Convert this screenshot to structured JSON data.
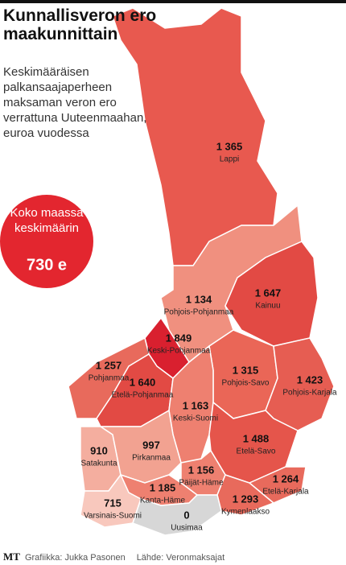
{
  "title": "Kunnallisveron ero maakunnittain",
  "subtitle": "Keskimääräisen palkansaajaperheen maksaman veron ero verrattuna Uuteenmaahan, euroa vuodessa",
  "callout": {
    "text": "Koko maassa keskimäärin",
    "value": {
      "value": 730,
      "label": "730 e"
    }
  },
  "regions": [
    {
      "name": "Lappi",
      "value": {
        "value": 1365,
        "label": "1 365"
      },
      "color": "#e8594f"
    },
    {
      "name": "Pohjois-Pohjanmaa",
      "value": {
        "value": 1134,
        "label": "1 134"
      },
      "color": "#f0907f"
    },
    {
      "name": "Kainuu",
      "value": {
        "value": 1647,
        "label": "1 647"
      },
      "color": "#e24a44"
    },
    {
      "name": "Keski-Pohjanmaa",
      "value": {
        "value": 1849,
        "label": "1 849"
      },
      "color": "#d9202f"
    },
    {
      "name": "Pohjanmaa",
      "value": {
        "value": 1257,
        "label": "1 257"
      },
      "color": "#e86a5c"
    },
    {
      "name": "Etelä-Pohjanmaa",
      "value": {
        "value": 1640,
        "label": "1 640"
      },
      "color": "#e24a44"
    },
    {
      "name": "Pohjois-Savo",
      "value": {
        "value": 1315,
        "label": "1 315"
      },
      "color": "#ea6657"
    },
    {
      "name": "Pohjois-Karjala",
      "value": {
        "value": 1423,
        "label": "1 423"
      },
      "color": "#e65d52"
    },
    {
      "name": "Keski-Suomi",
      "value": {
        "value": 1163,
        "label": "1 163"
      },
      "color": "#ee8070"
    },
    {
      "name": "Etelä-Savo",
      "value": {
        "value": 1488,
        "label": "1 488"
      },
      "color": "#e5554b"
    },
    {
      "name": "Satakunta",
      "value": 910,
      "color": "#f4ae9f"
    },
    {
      "name": "Pirkanmaa",
      "value": 997,
      "color": "#f2a291"
    },
    {
      "name": "Päijät-Häme",
      "value": {
        "value": 1156,
        "label": "1 156"
      },
      "color": "#ee8070"
    },
    {
      "name": "Kanta-Häme",
      "value": {
        "value": 1185,
        "label": "1 185"
      },
      "color": "#ee8070"
    },
    {
      "name": "Etelä-Karjala",
      "value": {
        "value": 1264,
        "label": "1 264"
      },
      "color": "#e86a5c"
    },
    {
      "name": "Kymenlaakso",
      "value": {
        "value": 1293,
        "label": "1 293"
      },
      "color": "#e86a5c"
    },
    {
      "name": "Varsinais-Suomi",
      "value": 715,
      "color": "#f8c8bd"
    },
    {
      "name": "Uusimaa",
      "value": 0,
      "color": "#d7d7d7"
    }
  ],
  "footer": {
    "logo": "MT",
    "credit": "Grafiikka: Jukka Pasonen",
    "source": "Lähde: Veronmaksajat"
  }
}
